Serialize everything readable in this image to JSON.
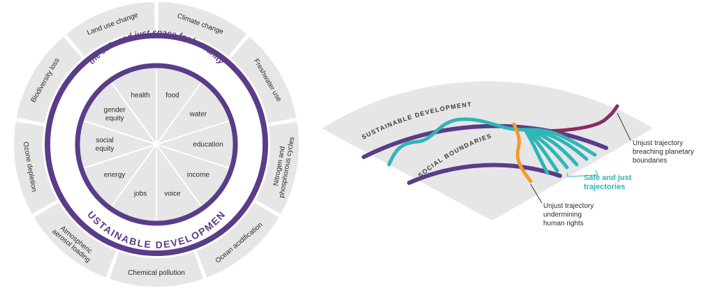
{
  "left": {
    "boundaries": [
      "Climate change",
      "Freshwater use",
      "Nitrogen and phosphorous cycles",
      "Ocean acidification",
      "Chemical pollution",
      "Atmospheric aerosol loading",
      "Ozone depletion",
      "Biodiversity loss",
      "Land use change"
    ],
    "boundary_lines": [
      [
        "Climate change"
      ],
      [
        "Freshwater use"
      ],
      [
        "Nitrogen and",
        "phosphorous cycles"
      ],
      [
        "Ocean acidification"
      ],
      [
        "Chemical pollution"
      ],
      [
        "Atmospheric",
        "aerosol loading"
      ],
      [
        "Ozone depletion"
      ],
      [
        "Biodiversity loss"
      ],
      [
        "Land use change"
      ]
    ],
    "safe_space_title": "the safe and just space for humanity",
    "sustainable_development_label": "SUSTAINABLE DEVELOPMENT",
    "social_foundations": [
      [
        "food"
      ],
      [
        "water"
      ],
      [
        "education"
      ],
      [
        "income"
      ],
      [
        "voice"
      ],
      [
        "jobs"
      ],
      [
        "energy"
      ],
      [
        "social",
        "equity"
      ],
      [
        "gender",
        "equity"
      ],
      [
        "health"
      ]
    ]
  },
  "right": {
    "outer_arc_label": "SUSTAINABLE DEVELOPMENT",
    "inner_arc_label": "SOCIAL BOUNDARIES",
    "annotation_planetary": [
      "Unjust trajectory",
      "breaching planetary",
      "boundaries"
    ],
    "annotation_safe": [
      "Safe and just",
      "trajectories"
    ],
    "annotation_rights": [
      "Unjust trajectory",
      "undermining",
      "human rights"
    ]
  },
  "colors": {
    "purple": "#5b3c88",
    "grey": "#e6e6e6",
    "teal": "#2fb6b7",
    "orange": "#f39a2b",
    "maroon": "#8b2b62"
  }
}
